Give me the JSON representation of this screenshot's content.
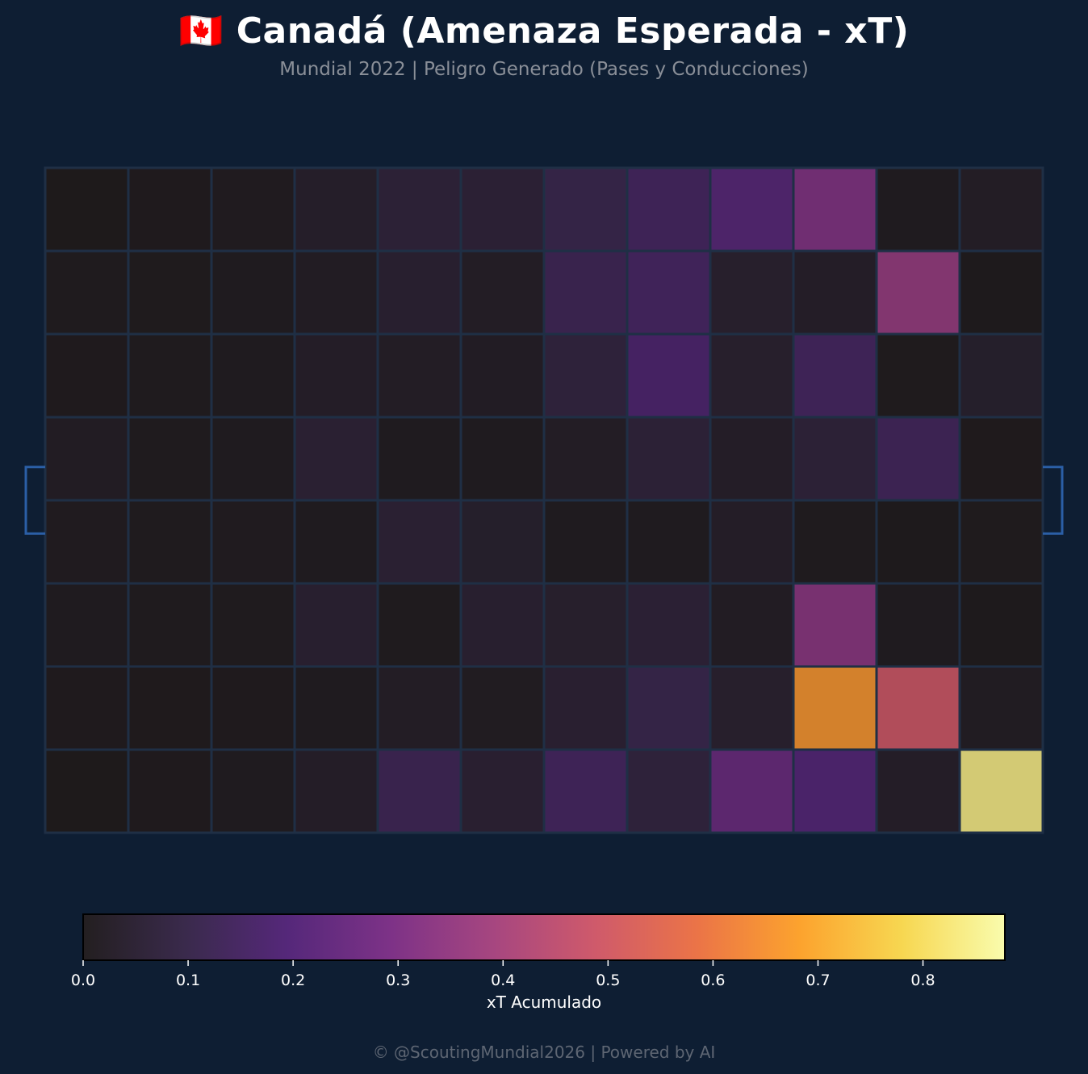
{
  "header": {
    "title": "🇨🇦 Canadá (Amenaza Esperada - xT)",
    "subtitle": "Mundial 2022 | Peligro Generado (Pases y Conducciones)"
  },
  "footer": {
    "credit": "© @ScoutingMundial2026 | Powered by AI"
  },
  "colors": {
    "background": "#0e1e33",
    "pitch_lines": "#1f2f45",
    "goal": "#2b5fa6",
    "colormap": [
      "#231f20",
      "#3a2a4c",
      "#55287a",
      "#7d3287",
      "#a64680",
      "#cf5a6b",
      "#eb7447",
      "#fca32e",
      "#f7d751",
      "#f9fcad"
    ]
  },
  "chart_data": {
    "type": "heatmap",
    "grid_columns": 12,
    "grid_rows": 8,
    "values": [
      [
        0.001,
        0.004,
        0.012,
        0.035,
        0.07,
        0.065,
        0.11,
        0.15,
        0.21,
        0.31,
        0.01,
        0.025
      ],
      [
        0.006,
        0.005,
        0.01,
        0.02,
        0.05,
        0.025,
        0.13,
        0.16,
        0.045,
        0.03,
        0.36,
        0.002
      ],
      [
        0.004,
        0.006,
        0.01,
        0.03,
        0.025,
        0.022,
        0.08,
        0.18,
        0.045,
        0.15,
        0.005,
        0.04
      ],
      [
        0.02,
        0.006,
        0.01,
        0.06,
        0.008,
        0.01,
        0.025,
        0.07,
        0.03,
        0.07,
        0.14,
        0.003
      ],
      [
        0.012,
        0.006,
        0.012,
        0.008,
        0.06,
        0.04,
        0.008,
        0.01,
        0.03,
        0.006,
        0.002,
        0.005
      ],
      [
        0.008,
        0.006,
        0.006,
        0.05,
        0.006,
        0.05,
        0.045,
        0.065,
        0.02,
        0.33,
        0.01,
        0.002
      ],
      [
        0.004,
        0.003,
        0.004,
        0.008,
        0.025,
        0.015,
        0.055,
        0.11,
        0.045,
        0.66,
        0.49,
        0.018
      ],
      [
        0.001,
        0.004,
        0.01,
        0.03,
        0.13,
        0.055,
        0.15,
        0.08,
        0.25,
        0.2,
        0.03,
        0.84
      ]
    ],
    "colorbar": {
      "label": "xT Acumulado",
      "min": 0.0,
      "max": 0.878,
      "ticks": [
        0.0,
        0.1,
        0.2,
        0.3,
        0.4,
        0.5,
        0.6,
        0.7,
        0.8
      ],
      "tick_labels": [
        "0.0",
        "0.1",
        "0.2",
        "0.3",
        "0.4",
        "0.5",
        "0.6",
        "0.7",
        "0.8"
      ]
    },
    "grid": false,
    "legend": "bottom"
  }
}
